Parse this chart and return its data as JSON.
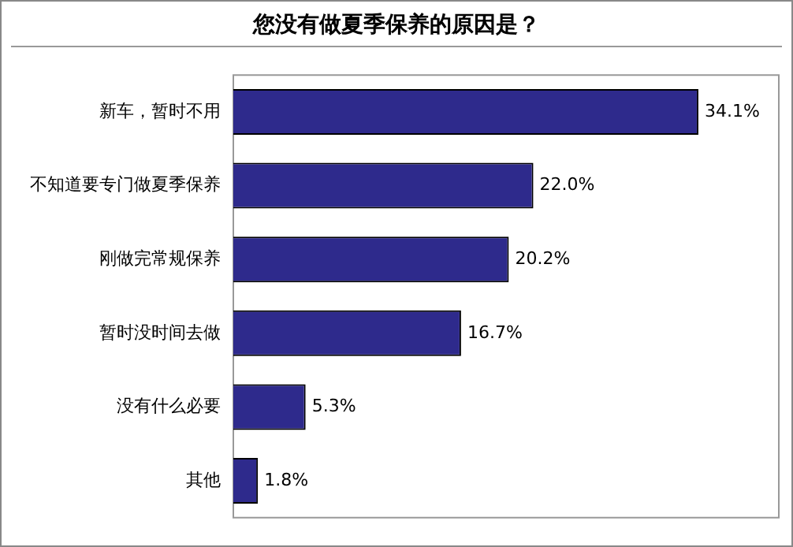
{
  "chart_data": {
    "type": "bar",
    "orientation": "horizontal",
    "title": "您没有做夏季保养的原因是？",
    "categories": [
      "新车，暂时不用",
      "不知道要专门做夏季保养",
      "刚做完常规保养",
      "暂时没时间去做",
      "没有什么必要",
      "其他"
    ],
    "values": [
      34.1,
      22.0,
      20.2,
      16.7,
      5.3,
      1.8
    ],
    "value_labels": [
      "34.1%",
      "22.0%",
      "20.2%",
      "16.7%",
      "5.3%",
      "1.8%"
    ],
    "color": "#2e2a8c",
    "xlim": [
      0,
      40
    ],
    "tick_labels": "y",
    "legend": false
  }
}
